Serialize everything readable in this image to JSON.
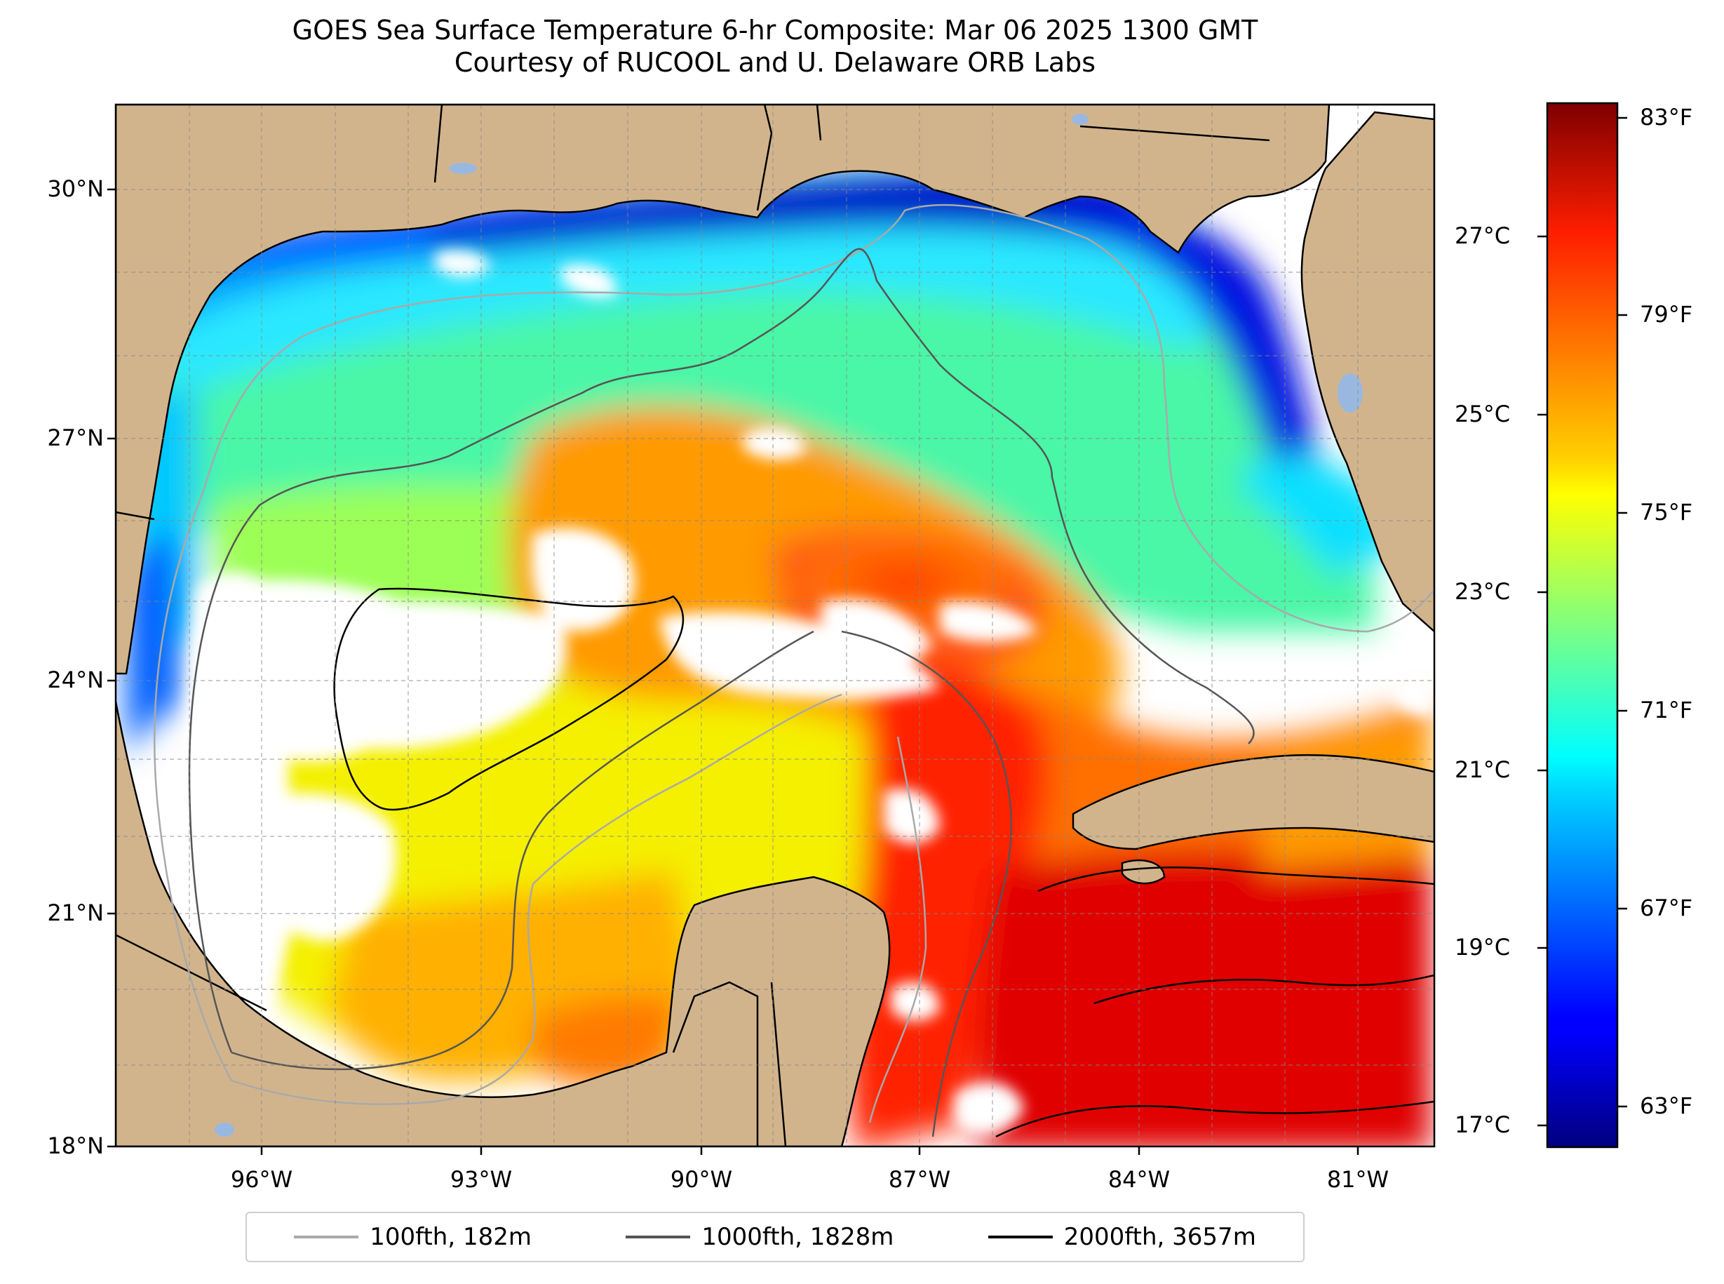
{
  "title": {
    "line1": "GOES Sea Surface Temperature 6-hr Composite: Mar 06 2025 1300 GMT",
    "line2": "Courtesy of RUCOOL and U. Delaware ORB Labs"
  },
  "map": {
    "region": "Gulf of Mexico",
    "lon_range": [
      -98,
      -80
    ],
    "lat_range": [
      18,
      30.9
    ],
    "land_color": "#d2b48c",
    "nodata_color": "#ffffff",
    "lat_ticks": [
      "30°N",
      "27°N",
      "24°N",
      "21°N",
      "18°N"
    ],
    "lon_ticks": [
      "96°W",
      "93°W",
      "90°W",
      "87°W",
      "84°W",
      "81°W"
    ],
    "gridlines": true
  },
  "colorbar": {
    "colormap": "jet",
    "range_c": [
      16.7,
      28.3
    ],
    "celsius_ticks": [
      "27°C",
      "25°C",
      "23°C",
      "21°C",
      "19°C",
      "17°C"
    ],
    "fahrenheit_ticks": [
      "83°F",
      "79°F",
      "75°F",
      "71°F",
      "67°F",
      "63°F"
    ]
  },
  "legend": [
    {
      "label": "100fth, 182m",
      "color": "#a9a9a9"
    },
    {
      "label": "1000fth, 1828m",
      "color": "#555555"
    },
    {
      "label": "2000fth, 3657m",
      "color": "#000000"
    }
  ]
}
